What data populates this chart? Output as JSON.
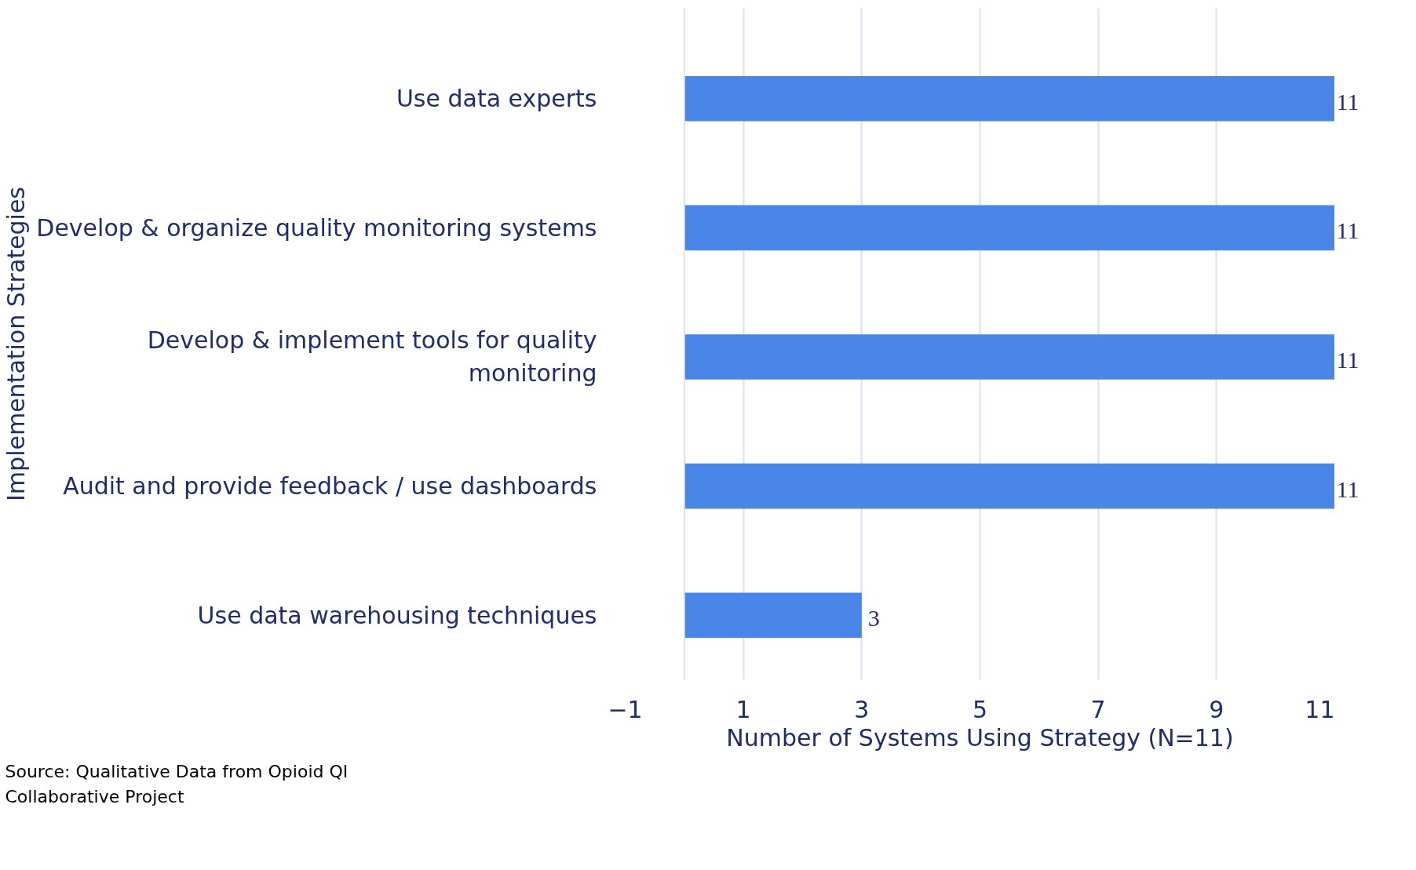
{
  "chart_data": {
    "type": "bar",
    "orientation": "horizontal",
    "ylabel": "Implementation Strategies",
    "xlabel": "Number of Systems Using Strategy (N=11)",
    "categories": [
      "Use data experts",
      "Develop & organize quality monitoring systems",
      "Develop & implement tools for quality monitoring",
      "Audit and provide feedback / use dashboards",
      "Use data warehousing techniques"
    ],
    "values": [
      11,
      11,
      11,
      11,
      3
    ],
    "color": "#4a86e8",
    "xlim": [
      -1,
      11
    ],
    "xticks": [
      -1,
      1,
      3,
      5,
      7,
      9,
      11
    ],
    "grid": "x",
    "data_labels": true,
    "annotations": [
      "Source: Qualitative Data from Opioid QI Collaborative Project"
    ]
  }
}
